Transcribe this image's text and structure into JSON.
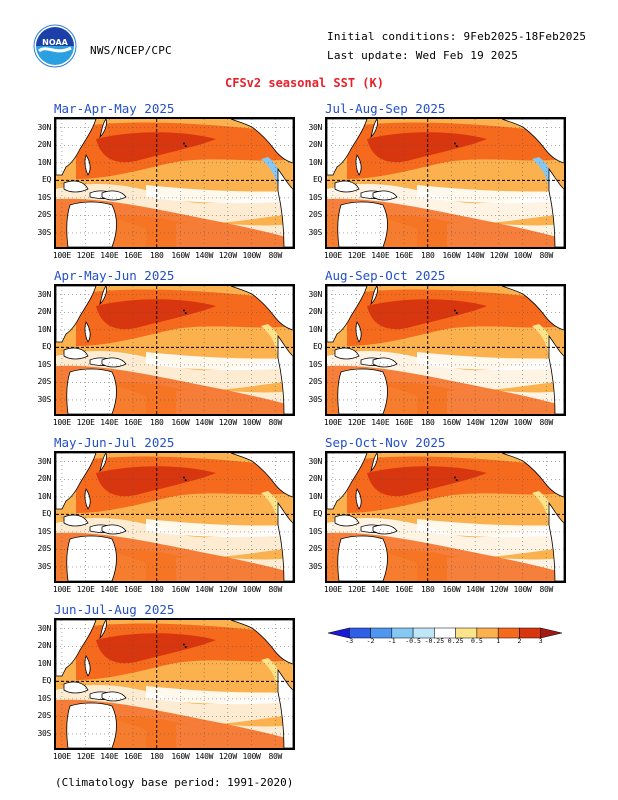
{
  "header": {
    "agency": "NWS/NCEP/CPC",
    "logo_text": "NOAA",
    "initial_conditions": "Initial conditions: 9Feb2025-18Feb2025",
    "last_update": "Last update: Wed Feb 19 2025",
    "title": "CFSv2 seasonal SST (K)"
  },
  "panels": [
    {
      "title": "Mar-Apr-May 2025"
    },
    {
      "title": "Jul-Aug-Sep 2025"
    },
    {
      "title": "Apr-May-Jun 2025"
    },
    {
      "title": "Aug-Sep-Oct 2025"
    },
    {
      "title": "May-Jun-Jul 2025"
    },
    {
      "title": "Sep-Oct-Nov 2025"
    },
    {
      "title": "Jun-Jul-Aug 2025"
    }
  ],
  "x_ticks": [
    "100E",
    "120E",
    "140E",
    "160E",
    "180",
    "160W",
    "140W",
    "120W",
    "100W",
    "80W"
  ],
  "y_ticks": [
    "30N",
    "20N",
    "10N",
    "EQ",
    "10S",
    "20S",
    "30S"
  ],
  "legend": {
    "labels": [
      "-3",
      "-2",
      "-1",
      "-0.5",
      "-0.25",
      "0.25",
      "0.5",
      "1",
      "2",
      "3"
    ],
    "colors": [
      "#1a1ad8",
      "#2f5fe6",
      "#4f97ee",
      "#86c8f4",
      "#bfe6f8",
      "#ffffff",
      "#fde38a",
      "#fbb24e",
      "#f56a1d",
      "#d8360f",
      "#a21a12"
    ]
  },
  "colors": {
    "land": "#ffffff",
    "coast": "#000000",
    "deep_warm": "#d8360f",
    "warm": "#f56a1d",
    "light_warm": "#fbb24e",
    "pale_warm": "#fde38a",
    "cool": "#86c8f4"
  },
  "footer": "(Climatology base period: 1991-2020)"
}
